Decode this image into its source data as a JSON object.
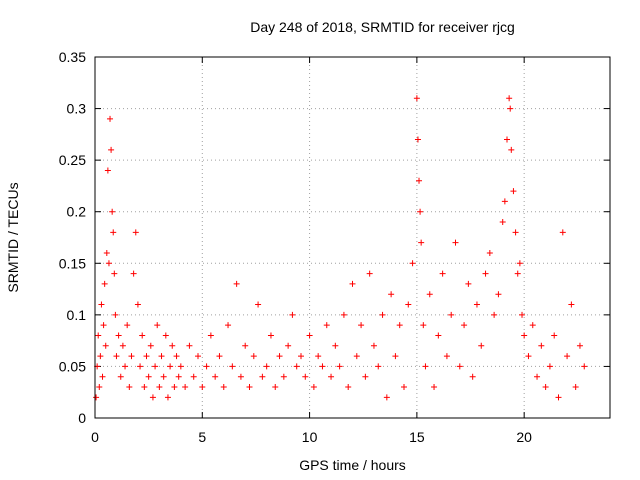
{
  "chart_data": {
    "type": "scatter",
    "title": "Day 248 of 2018, SRMTID for receiver rjcg",
    "xlabel": "GPS time / hours",
    "ylabel": "SRMTID / TECUs",
    "xlim": [
      0,
      24.0
    ],
    "ylim": [
      0,
      0.35
    ],
    "x_ticks": [
      "0",
      "5",
      "10",
      "15",
      "20"
    ],
    "x_tick_values": [
      0,
      5,
      10,
      15,
      20
    ],
    "y_ticks": [
      "0",
      "0.05",
      "0.1",
      "0.15",
      "0.2",
      "0.25",
      "0.3",
      "0.35"
    ],
    "y_tick_values": [
      0,
      0.05,
      0.1,
      0.15,
      0.2,
      0.25,
      0.3,
      0.35
    ],
    "grid": true,
    "marker": "+",
    "series": [
      {
        "name": "SRMTID",
        "color": "#ff0000",
        "points": [
          [
            0.05,
            0.02
          ],
          [
            0.1,
            0.05
          ],
          [
            0.15,
            0.08
          ],
          [
            0.2,
            0.03
          ],
          [
            0.25,
            0.06
          ],
          [
            0.3,
            0.11
          ],
          [
            0.35,
            0.04
          ],
          [
            0.4,
            0.09
          ],
          [
            0.45,
            0.13
          ],
          [
            0.5,
            0.07
          ],
          [
            0.55,
            0.16
          ],
          [
            0.6,
            0.24
          ],
          [
            0.65,
            0.15
          ],
          [
            0.7,
            0.29
          ],
          [
            0.75,
            0.26
          ],
          [
            0.8,
            0.2
          ],
          [
            0.85,
            0.18
          ],
          [
            0.9,
            0.14
          ],
          [
            0.95,
            0.1
          ],
          [
            1.0,
            0.06
          ],
          [
            1.1,
            0.08
          ],
          [
            1.2,
            0.04
          ],
          [
            1.3,
            0.07
          ],
          [
            1.4,
            0.05
          ],
          [
            1.5,
            0.09
          ],
          [
            1.6,
            0.03
          ],
          [
            1.7,
            0.06
          ],
          [
            1.8,
            0.14
          ],
          [
            1.9,
            0.18
          ],
          [
            2.0,
            0.11
          ],
          [
            2.1,
            0.05
          ],
          [
            2.2,
            0.08
          ],
          [
            2.3,
            0.03
          ],
          [
            2.4,
            0.06
          ],
          [
            2.5,
            0.04
          ],
          [
            2.6,
            0.07
          ],
          [
            2.7,
            0.02
          ],
          [
            2.8,
            0.05
          ],
          [
            2.9,
            0.09
          ],
          [
            3.0,
            0.03
          ],
          [
            3.1,
            0.06
          ],
          [
            3.2,
            0.04
          ],
          [
            3.3,
            0.08
          ],
          [
            3.4,
            0.02
          ],
          [
            3.5,
            0.05
          ],
          [
            3.6,
            0.07
          ],
          [
            3.7,
            0.03
          ],
          [
            3.8,
            0.06
          ],
          [
            3.9,
            0.04
          ],
          [
            4.0,
            0.05
          ],
          [
            4.2,
            0.03
          ],
          [
            4.4,
            0.07
          ],
          [
            4.6,
            0.04
          ],
          [
            4.8,
            0.06
          ],
          [
            5.0,
            0.03
          ],
          [
            5.2,
            0.05
          ],
          [
            5.4,
            0.08
          ],
          [
            5.6,
            0.04
          ],
          [
            5.8,
            0.06
          ],
          [
            6.0,
            0.03
          ],
          [
            6.2,
            0.09
          ],
          [
            6.4,
            0.05
          ],
          [
            6.6,
            0.13
          ],
          [
            6.8,
            0.04
          ],
          [
            7.0,
            0.07
          ],
          [
            7.2,
            0.03
          ],
          [
            7.4,
            0.06
          ],
          [
            7.6,
            0.11
          ],
          [
            7.8,
            0.04
          ],
          [
            8.0,
            0.05
          ],
          [
            8.2,
            0.08
          ],
          [
            8.4,
            0.03
          ],
          [
            8.6,
            0.06
          ],
          [
            8.8,
            0.04
          ],
          [
            9.0,
            0.07
          ],
          [
            9.2,
            0.1
          ],
          [
            9.4,
            0.05
          ],
          [
            9.6,
            0.06
          ],
          [
            9.8,
            0.04
          ],
          [
            10.0,
            0.08
          ],
          [
            10.2,
            0.03
          ],
          [
            10.4,
            0.06
          ],
          [
            10.6,
            0.05
          ],
          [
            10.8,
            0.09
          ],
          [
            11.0,
            0.04
          ],
          [
            11.2,
            0.07
          ],
          [
            11.4,
            0.05
          ],
          [
            11.6,
            0.1
          ],
          [
            11.8,
            0.03
          ],
          [
            12.0,
            0.13
          ],
          [
            12.2,
            0.06
          ],
          [
            12.4,
            0.09
          ],
          [
            12.6,
            0.04
          ],
          [
            12.8,
            0.14
          ],
          [
            13.0,
            0.07
          ],
          [
            13.2,
            0.05
          ],
          [
            13.4,
            0.1
          ],
          [
            13.6,
            0.02
          ],
          [
            13.8,
            0.12
          ],
          [
            14.0,
            0.06
          ],
          [
            14.2,
            0.09
          ],
          [
            14.4,
            0.03
          ],
          [
            14.6,
            0.11
          ],
          [
            14.8,
            0.15
          ],
          [
            15.0,
            0.31
          ],
          [
            15.05,
            0.27
          ],
          [
            15.1,
            0.23
          ],
          [
            15.15,
            0.2
          ],
          [
            15.2,
            0.17
          ],
          [
            15.3,
            0.09
          ],
          [
            15.4,
            0.05
          ],
          [
            15.6,
            0.12
          ],
          [
            15.8,
            0.03
          ],
          [
            16.0,
            0.08
          ],
          [
            16.2,
            0.14
          ],
          [
            16.4,
            0.06
          ],
          [
            16.6,
            0.1
          ],
          [
            16.8,
            0.17
          ],
          [
            17.0,
            0.05
          ],
          [
            17.2,
            0.09
          ],
          [
            17.4,
            0.13
          ],
          [
            17.6,
            0.04
          ],
          [
            17.8,
            0.11
          ],
          [
            18.0,
            0.07
          ],
          [
            18.2,
            0.14
          ],
          [
            18.4,
            0.16
          ],
          [
            18.6,
            0.1
          ],
          [
            18.8,
            0.12
          ],
          [
            19.0,
            0.19
          ],
          [
            19.1,
            0.21
          ],
          [
            19.2,
            0.27
          ],
          [
            19.3,
            0.31
          ],
          [
            19.35,
            0.3
          ],
          [
            19.4,
            0.26
          ],
          [
            19.5,
            0.22
          ],
          [
            19.6,
            0.18
          ],
          [
            19.7,
            0.14
          ],
          [
            19.8,
            0.15
          ],
          [
            19.9,
            0.1
          ],
          [
            20.0,
            0.08
          ],
          [
            20.2,
            0.06
          ],
          [
            20.4,
            0.09
          ],
          [
            20.6,
            0.04
          ],
          [
            20.8,
            0.07
          ],
          [
            21.0,
            0.03
          ],
          [
            21.2,
            0.05
          ],
          [
            21.4,
            0.08
          ],
          [
            21.6,
            0.02
          ],
          [
            21.8,
            0.18
          ],
          [
            22.0,
            0.06
          ],
          [
            22.2,
            0.11
          ],
          [
            22.4,
            0.03
          ],
          [
            22.6,
            0.07
          ],
          [
            22.8,
            0.05
          ]
        ]
      }
    ]
  }
}
